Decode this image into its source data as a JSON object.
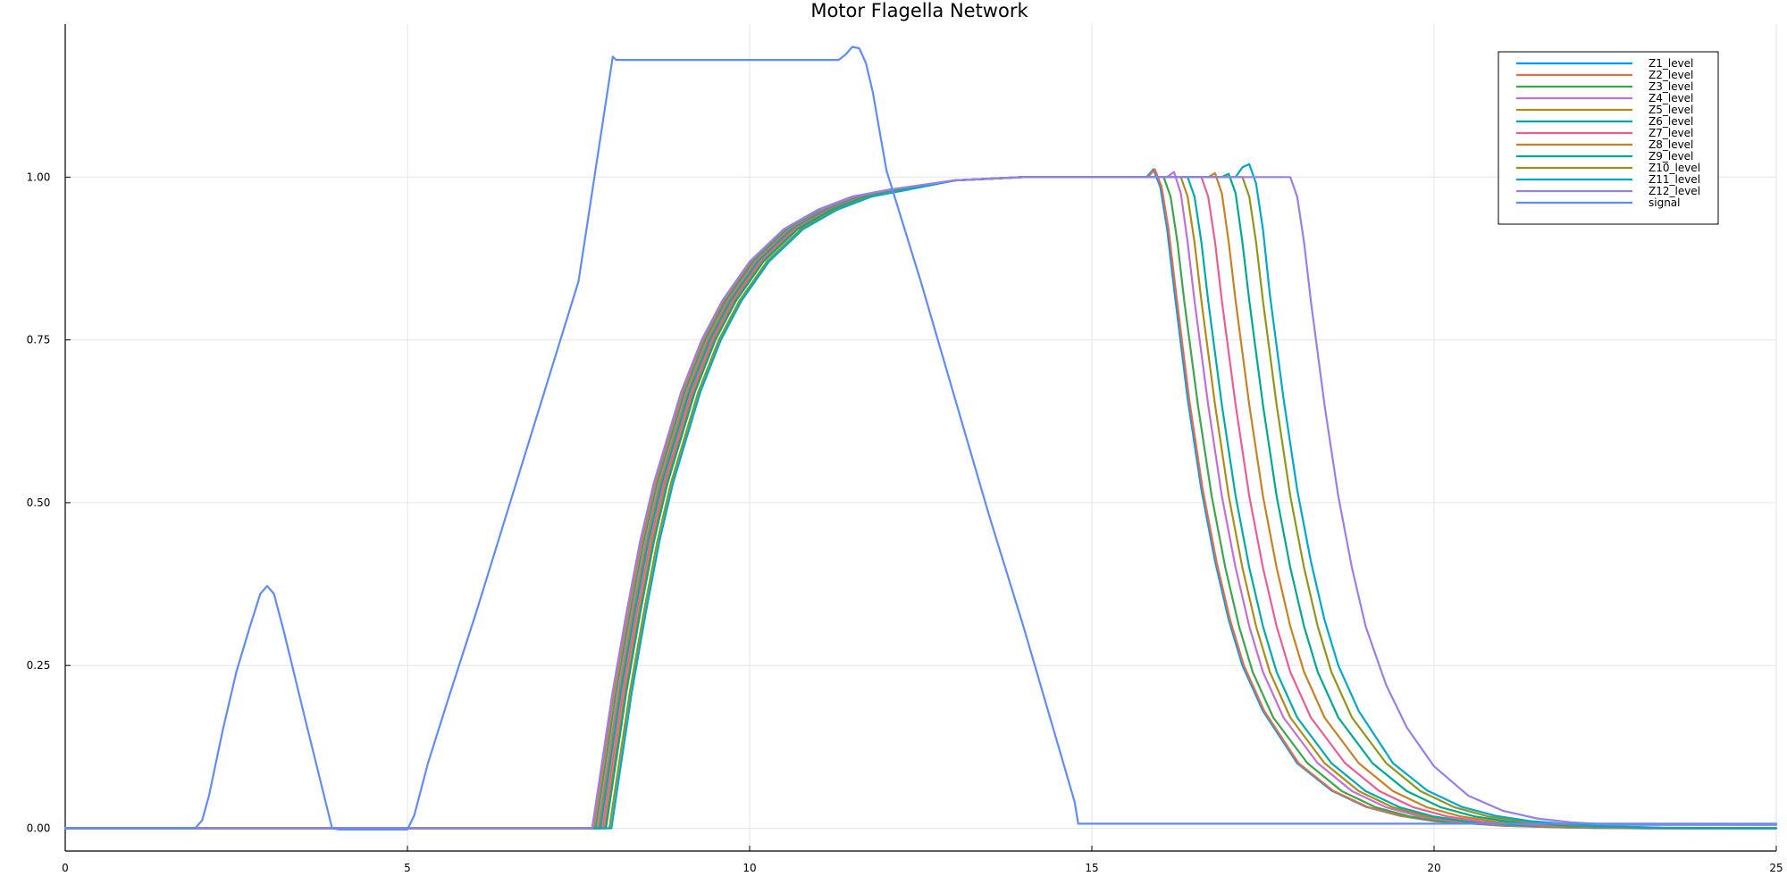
{
  "chart_data": {
    "type": "line",
    "title": "Motor Flagella Network",
    "xlabel": "",
    "ylabel": "",
    "xlim": [
      0,
      25
    ],
    "ylim": [
      -0.035,
      1.235
    ],
    "x_ticks": [
      0,
      5,
      10,
      15,
      20,
      25
    ],
    "x_tick_labels": [
      "0",
      "5",
      "10",
      "15",
      "20",
      "25"
    ],
    "y_ticks": [
      0,
      0.25,
      0.5,
      0.75,
      1.0
    ],
    "y_tick_labels": [
      "0.00",
      "0.25",
      "0.50",
      "0.75",
      "1.00"
    ],
    "grid": true,
    "legend_position": "top-right",
    "series": [
      {
        "name": "Z1_level",
        "color": "#009AFA",
        "x": [
          0,
          7.7,
          7.8,
          7.9,
          8.0,
          8.2,
          8.4,
          8.6,
          8.8,
          9.0,
          9.3,
          9.6,
          10.0,
          10.5,
          11.0,
          11.5,
          12.0,
          13.0,
          14.0,
          15.0,
          15.8,
          15.9,
          16.0,
          16.1,
          16.2,
          16.4,
          16.6,
          16.8,
          17.0,
          17.2,
          17.5,
          18.0,
          18.5,
          19.0,
          19.5,
          20.0,
          21.0,
          22.0,
          23.0,
          25.0
        ],
        "values": [
          0,
          0,
          0.07,
          0.14,
          0.21,
          0.33,
          0.44,
          0.53,
          0.6,
          0.67,
          0.75,
          0.81,
          0.87,
          0.92,
          0.95,
          0.97,
          0.98,
          0.995,
          1.0,
          1.0,
          1.0,
          1.012,
          0.985,
          0.92,
          0.83,
          0.66,
          0.52,
          0.41,
          0.32,
          0.25,
          0.18,
          0.1,
          0.058,
          0.033,
          0.019,
          0.011,
          0.004,
          0.001,
          0.0,
          0.0
        ]
      },
      {
        "name": "Z2_level",
        "color": "#E36F47",
        "x": [
          0,
          7.72,
          7.82,
          7.92,
          8.02,
          8.22,
          8.42,
          8.62,
          8.82,
          9.02,
          9.32,
          9.62,
          10.02,
          10.52,
          11.02,
          11.52,
          12.02,
          13.0,
          14.0,
          15.0,
          15.82,
          15.92,
          16.02,
          16.12,
          16.22,
          16.42,
          16.62,
          16.82,
          17.02,
          17.22,
          17.52,
          18.02,
          18.52,
          19.02,
          19.52,
          20.02,
          21.0,
          22.0,
          23.0,
          25.0
        ],
        "values": [
          0,
          0,
          0.07,
          0.14,
          0.21,
          0.33,
          0.44,
          0.53,
          0.6,
          0.67,
          0.75,
          0.81,
          0.87,
          0.92,
          0.95,
          0.97,
          0.98,
          0.995,
          1.0,
          1.0,
          1.0,
          1.012,
          0.985,
          0.92,
          0.83,
          0.66,
          0.52,
          0.41,
          0.32,
          0.25,
          0.18,
          0.1,
          0.058,
          0.033,
          0.019,
          0.011,
          0.004,
          0.001,
          0.0,
          0.0
        ]
      },
      {
        "name": "Z3_level",
        "color": "#3EA44E",
        "x": [
          0,
          7.75,
          7.85,
          7.95,
          8.05,
          8.25,
          8.45,
          8.65,
          8.85,
          9.05,
          9.35,
          9.65,
          10.05,
          10.55,
          11.05,
          11.55,
          12.05,
          13.0,
          14.0,
          15.0,
          15.95,
          16.05,
          16.15,
          16.25,
          16.35,
          16.55,
          16.75,
          16.95,
          17.15,
          17.35,
          17.65,
          18.15,
          18.65,
          19.15,
          19.65,
          20.15,
          21.1,
          22.1,
          23.1,
          25.0
        ],
        "values": [
          0,
          0,
          0.07,
          0.14,
          0.21,
          0.33,
          0.44,
          0.53,
          0.6,
          0.67,
          0.75,
          0.81,
          0.87,
          0.92,
          0.95,
          0.97,
          0.98,
          0.995,
          1.0,
          1.0,
          1.0,
          1.0,
          0.97,
          0.9,
          0.81,
          0.65,
          0.51,
          0.4,
          0.31,
          0.24,
          0.17,
          0.1,
          0.057,
          0.032,
          0.018,
          0.01,
          0.004,
          0.001,
          0.0,
          0.0
        ]
      },
      {
        "name": "Z4_level",
        "color": "#C271D2",
        "x": [
          0,
          7.78,
          7.88,
          7.98,
          8.08,
          8.28,
          8.48,
          8.68,
          8.88,
          9.08,
          9.38,
          9.68,
          10.08,
          10.58,
          11.08,
          11.58,
          12.08,
          13.0,
          14.0,
          15.0,
          16.1,
          16.2,
          16.3,
          16.4,
          16.5,
          16.7,
          16.9,
          17.1,
          17.3,
          17.5,
          17.8,
          18.3,
          18.8,
          19.3,
          19.8,
          20.3,
          21.2,
          22.2,
          23.2,
          25.0
        ],
        "values": [
          0,
          0,
          0.07,
          0.14,
          0.21,
          0.33,
          0.44,
          0.53,
          0.6,
          0.67,
          0.75,
          0.81,
          0.87,
          0.92,
          0.95,
          0.97,
          0.98,
          0.995,
          1.0,
          1.0,
          1.0,
          1.008,
          0.975,
          0.9,
          0.81,
          0.65,
          0.51,
          0.4,
          0.31,
          0.24,
          0.17,
          0.1,
          0.057,
          0.032,
          0.018,
          0.01,
          0.004,
          0.001,
          0.0,
          0.0
        ]
      },
      {
        "name": "Z5_level",
        "color": "#AC8D18",
        "x": [
          0,
          7.8,
          7.9,
          8.0,
          8.1,
          8.3,
          8.5,
          8.7,
          8.9,
          9.1,
          9.4,
          9.7,
          10.1,
          10.6,
          11.1,
          11.6,
          12.1,
          13.0,
          14.0,
          15.0,
          16.2,
          16.3,
          16.4,
          16.5,
          16.6,
          16.8,
          17.0,
          17.2,
          17.4,
          17.6,
          17.9,
          18.4,
          18.9,
          19.4,
          19.9,
          20.4,
          21.3,
          22.3,
          23.3,
          25.0
        ],
        "values": [
          0,
          0,
          0.07,
          0.14,
          0.21,
          0.33,
          0.44,
          0.53,
          0.6,
          0.67,
          0.75,
          0.81,
          0.87,
          0.92,
          0.95,
          0.97,
          0.98,
          0.995,
          1.0,
          1.0,
          1.0,
          1.0,
          0.97,
          0.9,
          0.81,
          0.65,
          0.51,
          0.4,
          0.31,
          0.24,
          0.17,
          0.1,
          0.057,
          0.032,
          0.018,
          0.01,
          0.004,
          0.001,
          0.0,
          0.0
        ]
      },
      {
        "name": "Z6_level",
        "color": "#00A9AD",
        "x": [
          0,
          7.82,
          7.92,
          8.02,
          8.12,
          8.32,
          8.52,
          8.72,
          8.92,
          9.12,
          9.42,
          9.72,
          10.12,
          10.62,
          11.12,
          11.62,
          12.12,
          13.0,
          14.0,
          15.0,
          16.3,
          16.4,
          16.5,
          16.6,
          16.7,
          16.9,
          17.1,
          17.3,
          17.5,
          17.7,
          18.0,
          18.5,
          19.0,
          19.5,
          20.0,
          20.5,
          21.4,
          22.4,
          23.4,
          25.0
        ],
        "values": [
          0,
          0,
          0.07,
          0.14,
          0.21,
          0.33,
          0.44,
          0.53,
          0.6,
          0.67,
          0.75,
          0.81,
          0.87,
          0.92,
          0.95,
          0.97,
          0.98,
          0.995,
          1.0,
          1.0,
          1.0,
          1.0,
          0.97,
          0.9,
          0.81,
          0.65,
          0.51,
          0.4,
          0.31,
          0.24,
          0.17,
          0.1,
          0.057,
          0.032,
          0.018,
          0.01,
          0.004,
          0.001,
          0.0,
          0.0
        ]
      },
      {
        "name": "Z7_level",
        "color": "#ED5D92",
        "x": [
          0,
          7.85,
          7.95,
          8.05,
          8.15,
          8.35,
          8.55,
          8.75,
          8.95,
          9.15,
          9.45,
          9.75,
          10.15,
          10.65,
          11.15,
          11.65,
          12.15,
          13.0,
          14.0,
          15.0,
          16.5,
          16.6,
          16.7,
          16.8,
          16.9,
          17.1,
          17.3,
          17.5,
          17.7,
          17.9,
          18.2,
          18.7,
          19.2,
          19.7,
          20.2,
          20.7,
          21.6,
          22.6,
          23.6,
          25.0
        ],
        "values": [
          0,
          0,
          0.07,
          0.14,
          0.21,
          0.33,
          0.44,
          0.53,
          0.6,
          0.67,
          0.75,
          0.81,
          0.87,
          0.92,
          0.95,
          0.97,
          0.98,
          0.995,
          1.0,
          1.0,
          1.0,
          1.0,
          0.97,
          0.9,
          0.81,
          0.65,
          0.51,
          0.4,
          0.31,
          0.24,
          0.17,
          0.1,
          0.057,
          0.032,
          0.018,
          0.01,
          0.004,
          0.001,
          0.0,
          0.0
        ]
      },
      {
        "name": "Z8_level",
        "color": "#C68225",
        "x": [
          0,
          7.88,
          7.98,
          8.08,
          8.18,
          8.38,
          8.58,
          8.78,
          8.98,
          9.18,
          9.48,
          9.78,
          10.18,
          10.68,
          11.18,
          11.68,
          12.18,
          13.0,
          14.0,
          15.0,
          16.7,
          16.8,
          16.9,
          17.0,
          17.1,
          17.3,
          17.5,
          17.7,
          17.9,
          18.1,
          18.4,
          18.9,
          19.4,
          19.9,
          20.4,
          20.9,
          21.8,
          22.8,
          23.8,
          25.0
        ],
        "values": [
          0,
          0,
          0.07,
          0.14,
          0.21,
          0.33,
          0.44,
          0.53,
          0.6,
          0.67,
          0.75,
          0.81,
          0.87,
          0.92,
          0.95,
          0.97,
          0.98,
          0.995,
          1.0,
          1.0,
          1.0,
          1.006,
          0.975,
          0.9,
          0.81,
          0.65,
          0.51,
          0.4,
          0.31,
          0.24,
          0.17,
          0.1,
          0.057,
          0.032,
          0.018,
          0.01,
          0.004,
          0.001,
          0.0,
          0.0
        ]
      },
      {
        "name": "Z9_level",
        "color": "#00A98D",
        "x": [
          0,
          7.9,
          8.0,
          8.1,
          8.2,
          8.4,
          8.6,
          8.8,
          9.0,
          9.2,
          9.5,
          9.8,
          10.2,
          10.7,
          11.2,
          11.7,
          12.2,
          13.0,
          14.0,
          15.0,
          16.9,
          17.0,
          17.1,
          17.2,
          17.3,
          17.5,
          17.7,
          17.9,
          18.1,
          18.3,
          18.6,
          19.1,
          19.6,
          20.1,
          20.6,
          21.1,
          22.0,
          23.0,
          24.0,
          25.0
        ],
        "values": [
          0,
          0,
          0.07,
          0.14,
          0.21,
          0.33,
          0.44,
          0.53,
          0.6,
          0.67,
          0.75,
          0.81,
          0.87,
          0.92,
          0.95,
          0.97,
          0.98,
          0.995,
          1.0,
          1.0,
          1.0,
          1.005,
          0.975,
          0.9,
          0.81,
          0.65,
          0.51,
          0.4,
          0.31,
          0.24,
          0.17,
          0.1,
          0.057,
          0.032,
          0.018,
          0.01,
          0.004,
          0.001,
          0.0,
          0.0
        ]
      },
      {
        "name": "Z10_level",
        "color": "#8E971D",
        "x": [
          0,
          7.95,
          8.05,
          8.15,
          8.25,
          8.45,
          8.65,
          8.85,
          9.05,
          9.25,
          9.55,
          9.85,
          10.25,
          10.75,
          11.25,
          11.75,
          12.25,
          13.0,
          14.0,
          15.0,
          17.1,
          17.2,
          17.3,
          17.4,
          17.5,
          17.7,
          17.9,
          18.1,
          18.3,
          18.5,
          18.8,
          19.3,
          19.8,
          20.3,
          20.8,
          21.3,
          22.2,
          23.2,
          24.2,
          25.0
        ],
        "values": [
          0,
          0,
          0.07,
          0.14,
          0.21,
          0.33,
          0.44,
          0.53,
          0.6,
          0.67,
          0.75,
          0.81,
          0.87,
          0.92,
          0.95,
          0.97,
          0.98,
          0.995,
          1.0,
          1.0,
          1.0,
          1.0,
          0.97,
          0.9,
          0.81,
          0.65,
          0.51,
          0.4,
          0.31,
          0.24,
          0.17,
          0.1,
          0.057,
          0.032,
          0.018,
          0.01,
          0.004,
          0.001,
          0.0,
          0.0
        ]
      },
      {
        "name": "Z11_level",
        "color": "#00A8CB",
        "x": [
          0,
          7.98,
          8.08,
          8.18,
          8.28,
          8.48,
          8.68,
          8.88,
          9.08,
          9.28,
          9.58,
          9.88,
          10.28,
          10.78,
          11.28,
          11.78,
          12.28,
          13.0,
          14.0,
          15.0,
          17.1,
          17.2,
          17.3,
          17.4,
          17.5,
          17.6,
          17.8,
          18.0,
          18.2,
          18.4,
          18.6,
          18.9,
          19.4,
          19.9,
          20.4,
          20.9,
          21.4,
          22.3,
          23.3,
          25.0
        ],
        "values": [
          0,
          0,
          0.07,
          0.14,
          0.21,
          0.33,
          0.44,
          0.53,
          0.6,
          0.67,
          0.75,
          0.81,
          0.87,
          0.92,
          0.95,
          0.97,
          0.98,
          0.995,
          1.0,
          1.0,
          1.0,
          1.015,
          1.02,
          0.99,
          0.92,
          0.82,
          0.66,
          0.52,
          0.41,
          0.32,
          0.25,
          0.18,
          0.1,
          0.058,
          0.033,
          0.019,
          0.011,
          0.004,
          0.001,
          0.0
        ]
      },
      {
        "name": "Z12_level",
        "color": "#9B7FE9",
        "x": [
          0,
          7.7,
          7.8,
          7.9,
          8.0,
          8.2,
          8.4,
          8.6,
          8.8,
          9.0,
          9.3,
          9.6,
          10.0,
          10.5,
          11.0,
          11.5,
          12.0,
          13.0,
          14.0,
          15.0,
          17.8,
          17.9,
          18.0,
          18.1,
          18.2,
          18.4,
          18.6,
          18.8,
          19.0,
          19.3,
          19.6,
          20.0,
          20.5,
          21.0,
          21.5,
          22.0,
          22.5,
          23.0,
          24.0,
          25.0
        ],
        "values": [
          0,
          0,
          0.07,
          0.14,
          0.21,
          0.33,
          0.44,
          0.53,
          0.6,
          0.67,
          0.75,
          0.81,
          0.87,
          0.92,
          0.95,
          0.97,
          0.98,
          0.995,
          1.0,
          1.0,
          1.0,
          1.0,
          0.97,
          0.9,
          0.81,
          0.65,
          0.51,
          0.4,
          0.31,
          0.22,
          0.155,
          0.095,
          0.05,
          0.027,
          0.015,
          0.009,
          0.006,
          0.005,
          0.005,
          0.005
        ]
      },
      {
        "name": "signal",
        "color": "#608CF6",
        "x": [
          0,
          1.9,
          2.0,
          2.1,
          2.3,
          2.5,
          2.7,
          2.85,
          2.95,
          3.05,
          3.2,
          3.5,
          3.9,
          4.0,
          4.5,
          5.0,
          5.1,
          5.3,
          5.6,
          6.0,
          6.5,
          7.0,
          7.5,
          8.0,
          8.05,
          9.0,
          10.0,
          11.0,
          11.3,
          11.4,
          11.5,
          11.6,
          11.7,
          11.8,
          11.9,
          12.0,
          12.5,
          13.0,
          13.5,
          14.0,
          14.5,
          14.75,
          14.8,
          15.0,
          20.0,
          25.0
        ],
        "values": [
          0,
          0,
          0.012,
          0.05,
          0.15,
          0.24,
          0.31,
          0.36,
          0.372,
          0.36,
          0.3,
          0.17,
          0.0,
          -0.002,
          -0.002,
          -0.002,
          0.02,
          0.1,
          0.2,
          0.33,
          0.5,
          0.67,
          0.84,
          1.185,
          1.18,
          1.18,
          1.18,
          1.18,
          1.18,
          1.188,
          1.2,
          1.198,
          1.175,
          1.13,
          1.07,
          1.01,
          0.84,
          0.66,
          0.48,
          0.31,
          0.13,
          0.04,
          0.007,
          0.007,
          0.007,
          0.007
        ]
      }
    ]
  }
}
